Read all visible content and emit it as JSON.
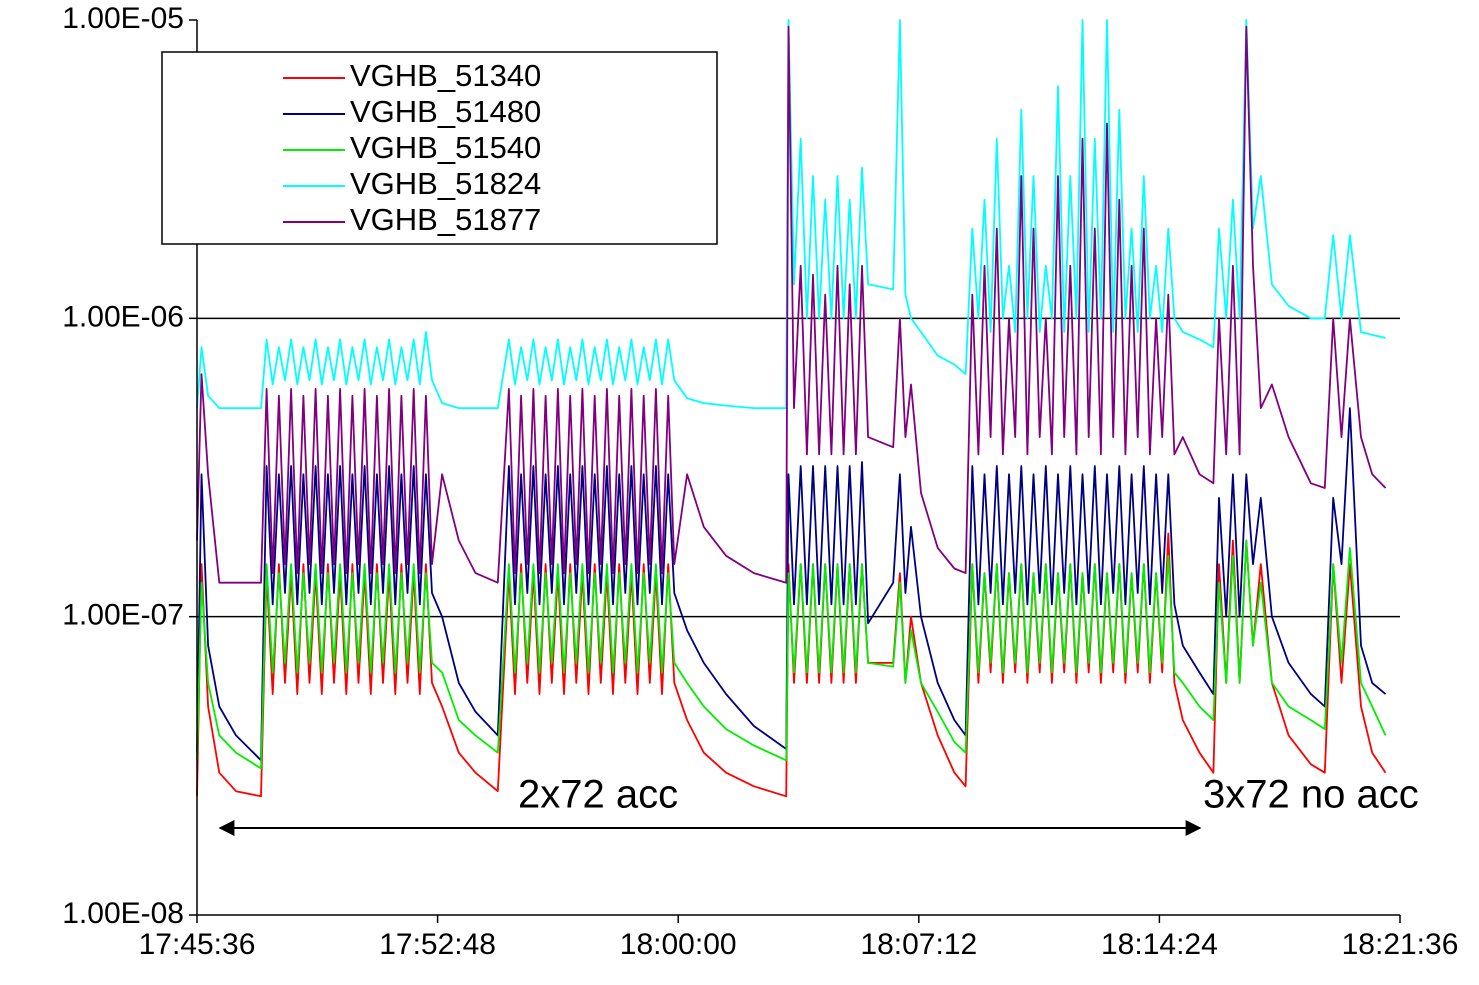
{
  "chart_data": {
    "type": "line",
    "log_y": true,
    "grid": true,
    "legend": "upper left",
    "annotations": [
      "2x72 acc",
      "3x72 no acc"
    ],
    "xlim": [
      "17:45:36",
      "18:21:36"
    ],
    "xticks": [
      "17:45:36",
      "17:52:48",
      "18:00:00",
      "18:07:12",
      "18:14:24",
      "18:21:36"
    ],
    "ylim": [
      1e-08,
      1e-05
    ],
    "yticks": [
      {
        "value": 1e-08,
        "label": "1.00E-08"
      },
      {
        "value": 1e-07,
        "label": "1.00E-07"
      },
      {
        "value": 1e-06,
        "label": "1.00E-06"
      },
      {
        "value": 1e-05,
        "label": "1.00E-05"
      }
    ],
    "x": [
      "17:45:36",
      "17:45:44",
      "17:45:56",
      "17:46:16",
      "17:46:46",
      "17:47:31",
      "17:47:41",
      "17:47:52",
      "17:48:03",
      "17:48:14",
      "17:48:25",
      "17:48:36",
      "17:48:47",
      "17:48:58",
      "17:49:09",
      "17:49:20",
      "17:49:31",
      "17:49:42",
      "17:49:53",
      "17:50:04",
      "17:50:15",
      "17:50:26",
      "17:50:37",
      "17:50:48",
      "17:50:59",
      "17:51:10",
      "17:51:21",
      "17:51:32",
      "17:51:43",
      "17:51:54",
      "17:52:05",
      "17:52:16",
      "17:52:27",
      "17:52:38",
      "17:52:56",
      "17:53:26",
      "17:53:56",
      "17:54:36",
      "17:54:56",
      "17:55:07",
      "17:55:18",
      "17:55:29",
      "17:55:40",
      "17:55:51",
      "17:56:02",
      "17:56:13",
      "17:56:24",
      "17:56:35",
      "17:56:46",
      "17:56:57",
      "17:57:08",
      "17:57:19",
      "17:57:30",
      "17:57:41",
      "17:57:52",
      "17:58:03",
      "17:58:14",
      "17:58:25",
      "17:58:36",
      "17:58:47",
      "17:58:58",
      "17:59:09",
      "17:59:20",
      "17:59:31",
      "17:59:42",
      "17:59:53",
      "18:00:16",
      "18:00:46",
      "18:01:26",
      "18:02:16",
      "18:03:14",
      "18:03:18",
      "18:03:28",
      "18:03:40",
      "18:03:51",
      "18:04:02",
      "18:04:13",
      "18:04:24",
      "18:04:35",
      "18:04:46",
      "18:04:57",
      "18:05:08",
      "18:05:19",
      "18:05:30",
      "18:05:41",
      "18:06:26",
      "18:06:38",
      "18:06:48",
      "18:06:58",
      "18:07:16",
      "18:07:46",
      "18:08:16",
      "18:08:36",
      "18:08:48",
      "18:08:59",
      "18:09:10",
      "18:09:21",
      "18:09:32",
      "18:09:43",
      "18:09:54",
      "18:10:05",
      "18:10:16",
      "18:10:27",
      "18:10:38",
      "18:10:49",
      "18:11:00",
      "18:11:11",
      "18:11:22",
      "18:11:33",
      "18:11:44",
      "18:11:55",
      "18:12:06",
      "18:12:17",
      "18:12:28",
      "18:12:39",
      "18:12:50",
      "18:13:01",
      "18:13:12",
      "18:13:23",
      "18:13:34",
      "18:13:45",
      "18:13:56",
      "18:14:07",
      "18:14:18",
      "18:14:29",
      "18:14:40",
      "18:14:51",
      "18:15:06",
      "18:15:36",
      "18:16:01",
      "18:16:11",
      "18:16:24",
      "18:16:36",
      "18:16:48",
      "18:17:00",
      "18:17:12",
      "18:17:26",
      "18:17:46",
      "18:18:16",
      "18:18:56",
      "18:19:21",
      "18:19:36",
      "18:19:51",
      "18:20:06",
      "18:20:26",
      "18:20:46",
      "18:21:10"
    ],
    "series": [
      {
        "name": "VGHB_51340",
        "color": "#ff0000",
        "values": [
          2.5e-08,
          1.5e-07,
          5e-08,
          3e-08,
          2.6e-08,
          2.5e-08,
          1.4e-07,
          5.5e-08,
          1.5e-07,
          6e-08,
          1.4e-07,
          5.5e-08,
          1.5e-07,
          6e-08,
          1.4e-07,
          5.5e-08,
          1.5e-07,
          6e-08,
          1.4e-07,
          5.5e-08,
          1.5e-07,
          6e-08,
          1.4e-07,
          5.5e-08,
          1.5e-07,
          6e-08,
          1.4e-07,
          5.5e-08,
          1.5e-07,
          6e-08,
          1.4e-07,
          5.5e-08,
          1.5e-07,
          6e-08,
          5e-08,
          3.5e-08,
          3e-08,
          2.6e-08,
          1.4e-07,
          5.5e-08,
          1.5e-07,
          6e-08,
          1.4e-07,
          5.5e-08,
          1.5e-07,
          6e-08,
          1.4e-07,
          5.5e-08,
          1.5e-07,
          6e-08,
          1.4e-07,
          5.5e-08,
          1.5e-07,
          6e-08,
          1.4e-07,
          5.5e-08,
          1.5e-07,
          6e-08,
          1.4e-07,
          5.5e-08,
          1.5e-07,
          6e-08,
          1.4e-07,
          5.5e-08,
          1.5e-07,
          6e-08,
          4.5e-08,
          3.5e-08,
          3e-08,
          2.7e-08,
          2.5e-08,
          1.5e-07,
          6e-08,
          1.5e-07,
          6e-08,
          1.5e-07,
          6e-08,
          1.5e-07,
          6e-08,
          1.5e-07,
          6e-08,
          1.5e-07,
          6e-08,
          1.5e-07,
          7e-08,
          7e-08,
          1.4e-07,
          6e-08,
          1e-07,
          6e-08,
          4e-08,
          3e-08,
          2.7e-08,
          1.5e-07,
          6e-08,
          1.4e-07,
          6.5e-08,
          1.5e-07,
          6e-08,
          1.4e-07,
          6.5e-08,
          1.5e-07,
          6e-08,
          1.4e-07,
          6.5e-08,
          1.5e-07,
          6e-08,
          1.4e-07,
          6.5e-08,
          1.5e-07,
          6e-08,
          1.4e-07,
          6.5e-08,
          1.5e-07,
          6e-08,
          1.4e-07,
          6.5e-08,
          1.5e-07,
          6e-08,
          1.4e-07,
          6.5e-08,
          1.5e-07,
          6e-08,
          1.4e-07,
          6.5e-08,
          1.9e-07,
          6e-08,
          4.5e-08,
          3.5e-08,
          3e-08,
          1.5e-07,
          6e-08,
          1.8e-07,
          6e-08,
          1.8e-07,
          8e-08,
          1.5e-07,
          6e-08,
          4e-08,
          3.2e-08,
          3e-08,
          1.5e-07,
          6e-08,
          1.5e-07,
          5e-08,
          3.5e-08,
          3e-08
        ]
      },
      {
        "name": "VGHB_51480",
        "color": "#000080",
        "values": [
          3.5e-08,
          3e-07,
          8e-08,
          5e-08,
          4e-08,
          3.3e-08,
          3.2e-07,
          1.1e-07,
          3e-07,
          1.2e-07,
          3.2e-07,
          1.1e-07,
          3e-07,
          1.2e-07,
          3.2e-07,
          1.1e-07,
          3e-07,
          1.2e-07,
          3.2e-07,
          1.1e-07,
          3e-07,
          1.2e-07,
          3.2e-07,
          1.1e-07,
          3e-07,
          1.2e-07,
          3.2e-07,
          1.1e-07,
          3e-07,
          1.2e-07,
          3.2e-07,
          1.1e-07,
          3e-07,
          1.2e-07,
          1e-07,
          6e-08,
          4.8e-08,
          4e-08,
          3.2e-07,
          1.1e-07,
          3e-07,
          1.2e-07,
          3.2e-07,
          1.1e-07,
          3e-07,
          1.2e-07,
          3.2e-07,
          1.1e-07,
          3e-07,
          1.2e-07,
          3.2e-07,
          1.1e-07,
          3e-07,
          1.2e-07,
          3.2e-07,
          1.1e-07,
          3e-07,
          1.2e-07,
          3.2e-07,
          1.1e-07,
          3e-07,
          1.2e-07,
          3.2e-07,
          1.1e-07,
          3e-07,
          1.2e-07,
          9e-08,
          7e-08,
          5.5e-08,
          4.3e-08,
          3.6e-08,
          3e-07,
          1.1e-07,
          3.2e-07,
          1.1e-07,
          3.2e-07,
          1.1e-07,
          3.2e-07,
          1.1e-07,
          3.2e-07,
          1.1e-07,
          3.2e-07,
          1.1e-07,
          3.3e-07,
          9.5e-08,
          1.3e-07,
          3e-07,
          1.2e-07,
          2e-07,
          1e-07,
          6e-08,
          4.5e-08,
          4e-08,
          3.2e-07,
          1.1e-07,
          3e-07,
          1.2e-07,
          3.2e-07,
          1.1e-07,
          3e-07,
          1.2e-07,
          3.2e-07,
          1.1e-07,
          3e-07,
          1.2e-07,
          3.2e-07,
          1.1e-07,
          3e-07,
          1.2e-07,
          3.2e-07,
          1.1e-07,
          3e-07,
          1.2e-07,
          3.2e-07,
          1.1e-07,
          3e-07,
          1.2e-07,
          3.2e-07,
          1.1e-07,
          3e-07,
          1.2e-07,
          3.2e-07,
          1.1e-07,
          3e-07,
          1.2e-07,
          3e-07,
          1.1e-07,
          8e-08,
          6.5e-08,
          5.5e-08,
          2.5e-07,
          1e-07,
          3e-07,
          1e-07,
          3e-07,
          1.5e-07,
          2.5e-07,
          1e-07,
          7e-08,
          5.5e-08,
          5e-08,
          2.5e-07,
          1.5e-07,
          5e-07,
          8e-08,
          6e-08,
          5.5e-08
        ]
      },
      {
        "name": "VGHB_51540",
        "color": "#00ee00",
        "values": [
          3.3e-08,
          1.3e-07,
          6e-08,
          4e-08,
          3.5e-08,
          3.1e-08,
          1.5e-07,
          6.5e-08,
          1.4e-07,
          7e-08,
          1.5e-07,
          6.5e-08,
          1.4e-07,
          7e-08,
          1.5e-07,
          6.5e-08,
          1.4e-07,
          7e-08,
          1.5e-07,
          6.5e-08,
          1.4e-07,
          7e-08,
          1.5e-07,
          6.5e-08,
          1.4e-07,
          7e-08,
          1.5e-07,
          6.5e-08,
          1.4e-07,
          7e-08,
          1.5e-07,
          6.5e-08,
          1.4e-07,
          7e-08,
          6.5e-08,
          4.5e-08,
          4e-08,
          3.5e-08,
          1.5e-07,
          6.5e-08,
          1.4e-07,
          7e-08,
          1.5e-07,
          6.5e-08,
          1.4e-07,
          7e-08,
          1.5e-07,
          6.5e-08,
          1.4e-07,
          7e-08,
          1.5e-07,
          6.5e-08,
          1.4e-07,
          7e-08,
          1.5e-07,
          6.5e-08,
          1.4e-07,
          7e-08,
          1.5e-07,
          6.5e-08,
          1.4e-07,
          7e-08,
          1.5e-07,
          6.5e-08,
          1.4e-07,
          7e-08,
          6e-08,
          5e-08,
          4.2e-08,
          3.7e-08,
          3.3e-08,
          1.4e-07,
          6.5e-08,
          1.5e-07,
          6.5e-08,
          1.5e-07,
          6.5e-08,
          1.5e-07,
          6.5e-08,
          1.5e-07,
          6.5e-08,
          1.5e-07,
          6.5e-08,
          1.5e-07,
          7e-08,
          6.8e-08,
          1.3e-07,
          6e-08,
          9e-08,
          6e-08,
          4.8e-08,
          3.8e-08,
          3.5e-08,
          1.5e-07,
          6.5e-08,
          1.4e-07,
          7e-08,
          1.5e-07,
          6.5e-08,
          1.4e-07,
          7e-08,
          1.5e-07,
          6.5e-08,
          1.4e-07,
          7e-08,
          1.5e-07,
          6.5e-08,
          1.4e-07,
          7e-08,
          1.5e-07,
          6.5e-08,
          1.4e-07,
          7e-08,
          1.5e-07,
          6.5e-08,
          1.4e-07,
          7e-08,
          1.5e-07,
          6.5e-08,
          1.4e-07,
          7e-08,
          1.5e-07,
          6.5e-08,
          1.4e-07,
          7e-08,
          1.6e-07,
          6.5e-08,
          6e-08,
          5e-08,
          4.5e-08,
          1.3e-07,
          6e-08,
          1.6e-07,
          6e-08,
          1.8e-07,
          8e-08,
          1.3e-07,
          6e-08,
          5e-08,
          4.5e-08,
          4.2e-08,
          1.5e-07,
          7e-08,
          1.7e-07,
          6e-08,
          5e-08,
          4e-08
        ]
      },
      {
        "name": "VGHB_51824",
        "color": "#00ffff",
        "values": [
          5e-07,
          8e-07,
          5.5e-07,
          5e-07,
          5e-07,
          5e-07,
          8.5e-07,
          6e-07,
          8e-07,
          6.2e-07,
          8.5e-07,
          6e-07,
          8e-07,
          6.2e-07,
          8.5e-07,
          6e-07,
          8e-07,
          6.2e-07,
          8.5e-07,
          6e-07,
          8e-07,
          6.2e-07,
          8.5e-07,
          6e-07,
          8e-07,
          6.2e-07,
          8.5e-07,
          6e-07,
          8e-07,
          6.2e-07,
          8.5e-07,
          6e-07,
          9e-07,
          6.2e-07,
          5.2e-07,
          5e-07,
          5e-07,
          5e-07,
          8.5e-07,
          6e-07,
          8e-07,
          6.2e-07,
          8.5e-07,
          6e-07,
          8e-07,
          6.2e-07,
          8.5e-07,
          6e-07,
          8e-07,
          6.2e-07,
          8.5e-07,
          6e-07,
          8e-07,
          6.2e-07,
          8.5e-07,
          6e-07,
          8e-07,
          6.2e-07,
          8.5e-07,
          6e-07,
          8e-07,
          6.2e-07,
          8.5e-07,
          6e-07,
          8.5e-07,
          6.2e-07,
          5.4e-07,
          5.2e-07,
          5.1e-07,
          5e-07,
          5e-07,
          1e-05,
          1.3e-06,
          4e-06,
          1e-06,
          3e-06,
          1e-06,
          2.5e-06,
          1e-06,
          3e-06,
          1e-06,
          2.5e-06,
          1e-06,
          3.2e-06,
          1.3e-06,
          1.25e-06,
          1e-05,
          1.2e-06,
          1e-06,
          9e-07,
          7.5e-07,
          7e-07,
          6.5e-07,
          2e-06,
          1e-06,
          2.5e-06,
          9e-07,
          4e-06,
          1e-06,
          1.5e-06,
          9e-07,
          5e-06,
          1e-06,
          3e-06,
          9e-07,
          1.5e-06,
          1e-06,
          6e-06,
          9e-07,
          3e-06,
          1e-06,
          1e-05,
          9e-07,
          4e-06,
          1e-06,
          1e-05,
          9e-07,
          5e-06,
          1e-06,
          2e-06,
          9e-07,
          3e-06,
          1e-06,
          1.5e-06,
          9e-07,
          2e-06,
          1e-06,
          9e-07,
          8.5e-07,
          8e-07,
          2e-06,
          1e-06,
          2.5e-06,
          1e-06,
          1e-05,
          2e-06,
          3e-06,
          1.3e-06,
          1.1e-06,
          1e-06,
          1e-06,
          1.9e-06,
          1e-06,
          1.9e-06,
          9e-07,
          8.8e-07,
          8.6e-07
        ]
      },
      {
        "name": "VGHB_51877",
        "color": "#800080",
        "values": [
          1.8e-07,
          6.5e-07,
          3e-07,
          1.3e-07,
          1.3e-07,
          1.3e-07,
          5.8e-07,
          1.4e-07,
          5.5e-07,
          1.5e-07,
          5.8e-07,
          1.4e-07,
          5.5e-07,
          1.5e-07,
          5.8e-07,
          1.4e-07,
          5.5e-07,
          1.5e-07,
          5.8e-07,
          1.4e-07,
          5.5e-07,
          1.5e-07,
          5.8e-07,
          1.4e-07,
          5.5e-07,
          1.5e-07,
          5.8e-07,
          1.4e-07,
          5.5e-07,
          1.5e-07,
          5.8e-07,
          1.4e-07,
          5.5e-07,
          1.5e-07,
          3e-07,
          1.8e-07,
          1.4e-07,
          1.3e-07,
          5.8e-07,
          1.4e-07,
          5.5e-07,
          1.5e-07,
          5.8e-07,
          1.4e-07,
          5.5e-07,
          1.5e-07,
          5.8e-07,
          1.4e-07,
          5.5e-07,
          1.5e-07,
          5.8e-07,
          1.4e-07,
          5.5e-07,
          1.5e-07,
          5.8e-07,
          1.4e-07,
          5.5e-07,
          1.5e-07,
          5.8e-07,
          1.4e-07,
          5.5e-07,
          1.5e-07,
          5.8e-07,
          1.4e-07,
          5.5e-07,
          1.5e-07,
          3e-07,
          2e-07,
          1.6e-07,
          1.4e-07,
          1.3e-07,
          9.5e-06,
          5e-07,
          1.5e-06,
          3.5e-07,
          1.4e-06,
          3.5e-07,
          1.2e-06,
          3.5e-07,
          1.5e-06,
          3.5e-07,
          1.3e-06,
          3.5e-07,
          1.5e-06,
          4e-07,
          3.7e-07,
          1e-06,
          4e-07,
          6e-07,
          2.6e-07,
          1.7e-07,
          1.45e-07,
          1.4e-07,
          1.2e-06,
          3.5e-07,
          1.5e-06,
          4e-07,
          2e-06,
          3.5e-07,
          1e-06,
          4e-07,
          3e-06,
          3.5e-07,
          2e-06,
          4e-07,
          1e-06,
          3.5e-07,
          3e-06,
          4e-07,
          1.5e-06,
          3.5e-07,
          4e-06,
          4e-07,
          2e-06,
          3.5e-07,
          4.5e-06,
          4e-07,
          2.5e-06,
          3.5e-07,
          1.5e-06,
          4e-07,
          2e-06,
          3.5e-07,
          1e-06,
          4e-07,
          1.2e-06,
          3.5e-07,
          4e-07,
          3e-07,
          2.8e-07,
          1e-06,
          3.5e-07,
          1.5e-06,
          3.5e-07,
          9.5e-06,
          1.5e-06,
          5e-07,
          6e-07,
          4e-07,
          2.8e-07,
          2.7e-07,
          1e-06,
          4e-07,
          1e-06,
          4e-07,
          3e-07,
          2.7e-07
        ]
      }
    ]
  }
}
